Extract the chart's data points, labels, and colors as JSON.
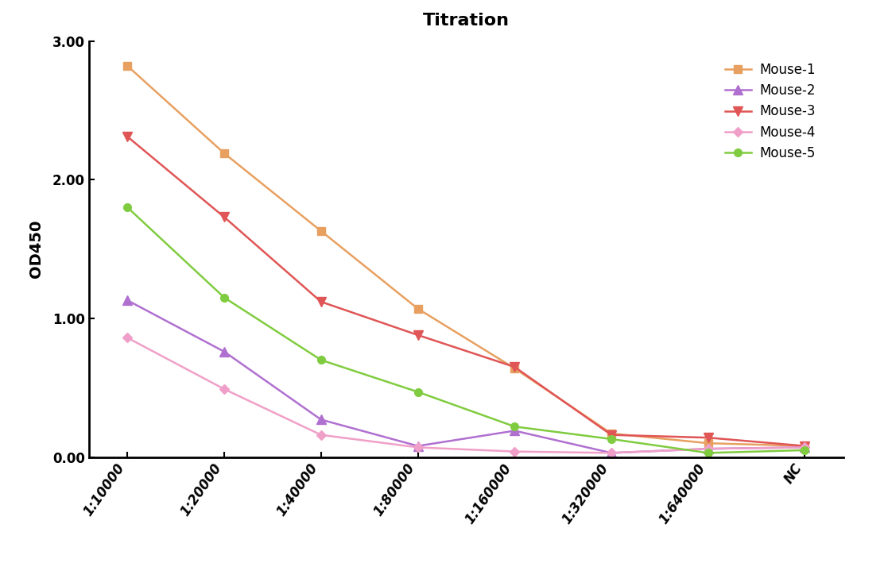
{
  "title": "Titration",
  "ylabel": "OD450",
  "x_labels": [
    "1:10000",
    "1:20000",
    "1:40000",
    "1:80000",
    "1:160000",
    "1:320000",
    "1:640000",
    "NC"
  ],
  "series": [
    {
      "name": "Mouse-1",
      "color": "#E8A060",
      "marker": "s",
      "markersize": 7,
      "values": [
        2.82,
        2.19,
        1.63,
        1.07,
        0.64,
        0.17,
        0.1,
        0.08
      ]
    },
    {
      "name": "Mouse-2",
      "color": "#B070D0",
      "marker": "^",
      "markersize": 8,
      "values": [
        1.13,
        0.76,
        0.27,
        0.08,
        0.19,
        0.03,
        0.06,
        0.07
      ]
    },
    {
      "name": "Mouse-3",
      "color": "#E05555",
      "marker": "v",
      "markersize": 8,
      "values": [
        2.31,
        1.73,
        1.12,
        0.88,
        0.65,
        0.16,
        0.14,
        0.08
      ]
    },
    {
      "name": "Mouse-4",
      "color": "#F0A0C8",
      "marker": "D",
      "markersize": 6,
      "values": [
        0.86,
        0.49,
        0.16,
        0.07,
        0.04,
        0.03,
        0.06,
        0.07
      ]
    },
    {
      "name": "Mouse-5",
      "color": "#80CC40",
      "marker": "o",
      "markersize": 7,
      "values": [
        1.8,
        1.15,
        0.7,
        0.47,
        0.22,
        0.13,
        0.03,
        0.05
      ]
    }
  ],
  "ylim": [
    0.0,
    3.0
  ],
  "yticks": [
    0.0,
    1.0,
    2.0,
    3.0
  ],
  "background_color": "#ffffff",
  "title_fontsize": 16,
  "axis_label_fontsize": 14,
  "tick_fontsize": 12,
  "legend_fontsize": 12,
  "line_width": 1.8
}
